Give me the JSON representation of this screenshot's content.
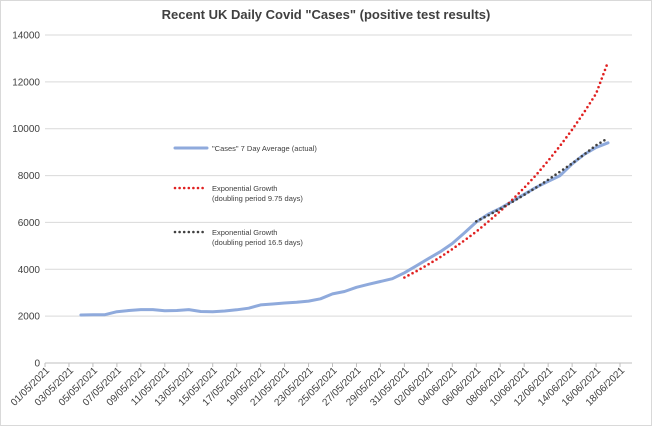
{
  "chart_data": {
    "type": "line",
    "title": "Recent UK Daily Covid \"Cases\"  (positive test results)",
    "xlabel": "",
    "ylabel": "",
    "ylim": [
      0,
      14000
    ],
    "y_ticks": [
      "0",
      "2000",
      "4000",
      "6000",
      "8000",
      "10000",
      "12000",
      "14000"
    ],
    "x_start": "01/05/2021",
    "x_end": "18/06/2021",
    "x_tick_labels": [
      "01/05/2021",
      "03/05/2021",
      "05/05/2021",
      "07/05/2021",
      "09/05/2021",
      "11/05/2021",
      "13/05/2021",
      "15/05/2021",
      "17/05/2021",
      "19/05/2021",
      "21/05/2021",
      "23/05/2021",
      "25/05/2021",
      "27/05/2021",
      "29/05/2021",
      "31/05/2021",
      "02/06/2021",
      "04/06/2021",
      "06/06/2021",
      "08/06/2021",
      "10/06/2021",
      "12/06/2021",
      "14/06/2021",
      "16/06/2021",
      "18/06/2021"
    ],
    "grid": "horizontal",
    "series": [
      {
        "name": "\"Cases\" 7 Day Average (actual)",
        "color": "#8faadc",
        "style": "solid",
        "x": [
          "04/05/2021",
          "05/05/2021",
          "06/05/2021",
          "07/05/2021",
          "08/05/2021",
          "09/05/2021",
          "10/05/2021",
          "11/05/2021",
          "12/05/2021",
          "13/05/2021",
          "14/05/2021",
          "15/05/2021",
          "16/05/2021",
          "17/05/2021",
          "18/05/2021",
          "19/05/2021",
          "20/05/2021",
          "21/05/2021",
          "22/05/2021",
          "23/05/2021",
          "24/05/2021",
          "25/05/2021",
          "26/05/2021",
          "27/05/2021",
          "28/05/2021",
          "29/05/2021",
          "30/05/2021",
          "31/05/2021",
          "01/06/2021",
          "02/06/2021",
          "03/06/2021",
          "04/06/2021",
          "05/06/2021",
          "06/06/2021",
          "07/06/2021",
          "08/06/2021",
          "09/06/2021",
          "10/06/2021",
          "11/06/2021",
          "12/06/2021",
          "13/06/2021",
          "14/06/2021",
          "15/06/2021",
          "16/06/2021",
          "17/06/2021"
        ],
        "values": [
          2050,
          2060,
          2060,
          2190,
          2240,
          2280,
          2280,
          2230,
          2240,
          2280,
          2200,
          2190,
          2220,
          2270,
          2340,
          2480,
          2520,
          2560,
          2590,
          2640,
          2740,
          2950,
          3050,
          3230,
          3360,
          3480,
          3600,
          3850,
          4150,
          4450,
          4750,
          5100,
          5550,
          6020,
          6350,
          6600,
          6900,
          7200,
          7500,
          7750,
          8000,
          8500,
          8900,
          9200,
          9400
        ]
      },
      {
        "name": "Exponential Growth",
        "subtitle": "(doubling period 9.75 days)",
        "color": "#e02020",
        "style": "dotted",
        "x": [
          "31/05/2021",
          "01/06/2021",
          "02/06/2021",
          "03/06/2021",
          "04/06/2021",
          "05/06/2021",
          "06/06/2021",
          "07/06/2021",
          "08/06/2021",
          "09/06/2021",
          "10/06/2021",
          "11/06/2021",
          "12/06/2021",
          "13/06/2021",
          "14/06/2021",
          "15/06/2021",
          "16/06/2021",
          "17/06/2021"
        ],
        "values": [
          3650,
          3920,
          4210,
          4520,
          4860,
          5230,
          5610,
          6030,
          6480,
          6960,
          7480,
          8030,
          8630,
          9270,
          9960,
          10700,
          11500,
          12850
        ]
      },
      {
        "name": "Exponential Growth",
        "subtitle": "(doubling period 16.5 days)",
        "color": "#404040",
        "style": "dotted",
        "x": [
          "06/06/2021",
          "07/06/2021",
          "08/06/2021",
          "09/06/2021",
          "10/06/2021",
          "11/06/2021",
          "12/06/2021",
          "13/06/2021",
          "14/06/2021",
          "15/06/2021",
          "16/06/2021",
          "17/06/2021"
        ],
        "values": [
          6050,
          6300,
          6580,
          6870,
          7180,
          7490,
          7820,
          8170,
          8520,
          8900,
          9290,
          9600
        ]
      }
    ]
  }
}
